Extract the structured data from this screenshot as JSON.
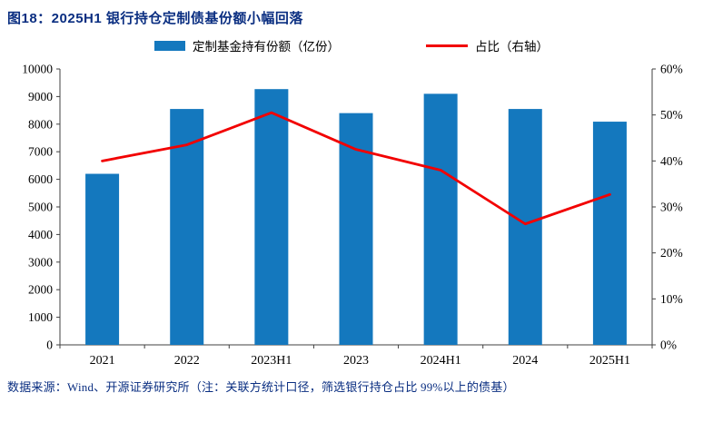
{
  "title": "图18：2025H1 银行持仓定制债基份额小幅回落",
  "footer": "数据来源：Wind、开源证券研究所（注：关联方统计口径，筛选银行持仓占比 99%以上的债基）",
  "legend": {
    "bar_label": "定制基金持有份额（亿份）",
    "line_label": "占比（右轴）"
  },
  "colors": {
    "title_text": "#0A2E81",
    "footer_text": "#0A2E81",
    "bar": "#1478BE",
    "line": "#F20000",
    "axis": "#404040",
    "tick_label": "#000000"
  },
  "chart_data": {
    "type": "bar",
    "subtype": "bar+line-combo",
    "categories": [
      "2021",
      "2022",
      "2023H1",
      "2023",
      "2024H1",
      "2024",
      "2025H1"
    ],
    "series": [
      {
        "name": "定制基金持有份额（亿份）",
        "type": "bar",
        "axis": "left",
        "values": [
          6200,
          8550,
          9270,
          8400,
          9100,
          8550,
          8090
        ]
      },
      {
        "name": "占比（右轴）",
        "type": "line",
        "axis": "right",
        "values": [
          40,
          43.5,
          50.5,
          42.5,
          38,
          26.3,
          32.7
        ]
      }
    ],
    "title": "图18：2025H1 银行持仓定制债基份额小幅回落",
    "xlabel": "",
    "ylabel_left": "",
    "ylabel_right": "",
    "left_axis": {
      "min": 0,
      "max": 10000,
      "step": 1000
    },
    "right_axis": {
      "min": 0,
      "max": 60,
      "step": 10,
      "suffix": "%"
    },
    "grid": false,
    "legend_position": "top"
  }
}
